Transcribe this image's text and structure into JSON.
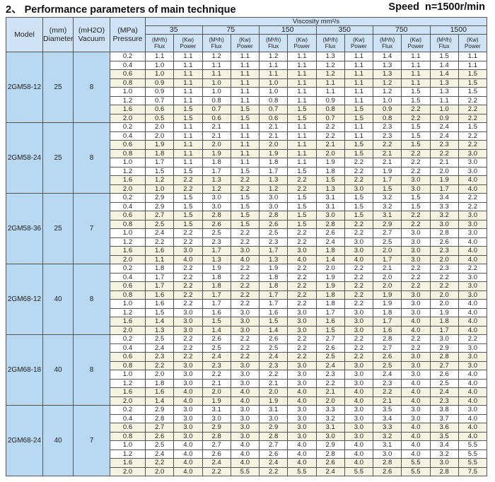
{
  "title": "2、 Performance parameters of main technique",
  "speed": "Speed   n=1500r/min",
  "headers": {
    "model": "Model",
    "diameter_unit": "(mm)",
    "diameter": "Diameter",
    "vacuum_unit": "(mH2O)",
    "vacuum": "Vacuum",
    "pressure_unit": "(MPa)",
    "pressure": "Pressure",
    "viscosity": "Viscosity mm²/s",
    "viscosities": [
      "35",
      "75",
      "150",
      "350",
      "750",
      "1500"
    ],
    "flux_unit": "(M³/h)",
    "flux": "Flux",
    "power_unit": "(Kw)",
    "power": "Power"
  },
  "colors": {
    "header_bg": "#cfe3f6",
    "left_bg": "#b9d8f2",
    "shade_bg": "#f5f3e1"
  },
  "pressures": [
    "0.2",
    "0.4",
    "0.6",
    "0.8",
    "1.0",
    "1.2",
    "1.6",
    "2.0"
  ],
  "models": [
    {
      "model": "2GM58-12",
      "diameter": "25",
      "vacuum": "8",
      "rows": [
        [
          "1.1",
          "1.1",
          "1.2",
          "1.1",
          "1.2",
          "1.1",
          "1.3",
          "1.1",
          "1.4",
          "1.1",
          "1.5",
          "1.1"
        ],
        [
          "1.0",
          "1.1",
          "1.1",
          "1.1",
          "1.1",
          "1.1",
          "1.2",
          "1.1",
          "1.3",
          "1.1",
          "1.4",
          "1.1"
        ],
        [
          "1.0",
          "1.1",
          "1.1",
          "1.1",
          "1.1",
          "1.1",
          "1.2",
          "1.1",
          "1.3",
          "1.1",
          "1.4",
          "1.5"
        ],
        [
          "0.9",
          "1.1",
          "1.0",
          "1.1",
          "1.0",
          "1.1",
          "1.1",
          "1.1",
          "1.2",
          "1.1",
          "1.3",
          "1.5"
        ],
        [
          "0.9",
          "1.1",
          "1.0",
          "1.1",
          "1.0",
          "1.1",
          "1.1",
          "1.1",
          "1.2",
          "1.5",
          "1.3",
          "1.5"
        ],
        [
          "0.7",
          "1.1",
          "0.8",
          "1.1",
          "0.8",
          "1.1",
          "0.9",
          "1.1",
          "1.0",
          "1.5",
          "1.1",
          "2.2"
        ],
        [
          "0.6",
          "1.5",
          "0.7",
          "1.5",
          "0.7",
          "1.5",
          "0.8",
          "1.5",
          "0.9",
          "2.2",
          "1.0",
          "2.2"
        ],
        [
          "0.5",
          "1.5",
          "0.6",
          "1.5",
          "0.6",
          "1.5",
          "0.7",
          "1.5",
          "0.8",
          "2.2",
          "0.9",
          "2.2"
        ]
      ]
    },
    {
      "model": "2GM58-24",
      "diameter": "25",
      "vacuum": "8",
      "rows": [
        [
          "2.0",
          "1.1",
          "2.1",
          "1.1",
          "2.1",
          "1.1",
          "2.2",
          "1.1",
          "2.3",
          "1.5",
          "2.4",
          "1.5"
        ],
        [
          "2.0",
          "1.1",
          "2.1",
          "1.1",
          "2.1",
          "1.1",
          "2.2",
          "1.1",
          "2.3",
          "1.5",
          "2.4",
          "2.2"
        ],
        [
          "1.9",
          "1.1",
          "2.0",
          "1.1",
          "2.0",
          "1.1",
          "2.1",
          "1.5",
          "2.2",
          "1.5",
          "2.3",
          "2.2"
        ],
        [
          "1.8",
          "1.1",
          "1.9",
          "1.1",
          "1.9",
          "1.1",
          "2.0",
          "1.5",
          "2.1",
          "2.2",
          "2.2",
          "3.0"
        ],
        [
          "1.7",
          "1.1",
          "1.8",
          "1.1",
          "1.8",
          "1.1",
          "1.9",
          "2.2",
          "2.1",
          "2.2",
          "2.1",
          "3.0"
        ],
        [
          "1.5",
          "1.5",
          "1.7",
          "1.5",
          "1.7",
          "1.5",
          "1.8",
          "2.2",
          "1.9",
          "2.2",
          "2.0",
          "3.0"
        ],
        [
          "1.2",
          "2.2",
          "1.3",
          "2.2",
          "1.3",
          "2.2",
          "1.5",
          "2.2",
          "1.7",
          "3.0",
          "1.9",
          "4.0"
        ],
        [
          "1.0",
          "2.2",
          "1.2",
          "2.2",
          "1.2",
          "2.2",
          "1.3",
          "3.0",
          "1.5",
          "3.0",
          "1.7",
          "4.0"
        ]
      ]
    },
    {
      "model": "2GM58-36",
      "diameter": "25",
      "vacuum": "7",
      "rows": [
        [
          "2.9",
          "1.5",
          "3.0",
          "1.5",
          "3.0",
          "1.5",
          "3.1",
          "1.5",
          "3.2",
          "1.5",
          "3.4",
          "2.2"
        ],
        [
          "2.9",
          "1.5",
          "3.0",
          "1.5",
          "3.0",
          "1.5",
          "3.1",
          "1.5",
          "3.2",
          "1.5",
          "3.3",
          "2.2"
        ],
        [
          "2.7",
          "1.5",
          "2.8",
          "1.5",
          "2.8",
          "1.5",
          "3.0",
          "1.5",
          "3.1",
          "2.2",
          "3.2",
          "3.0"
        ],
        [
          "2.5",
          "1.5",
          "2.6",
          "1.5",
          "2.6",
          "1.5",
          "2.8",
          "2.2",
          "2.9",
          "2.2",
          "3.0",
          "3.0"
        ],
        [
          "2.4",
          "2.2",
          "2.5",
          "2.2",
          "2.5",
          "2.2",
          "2.6",
          "2.2",
          "2.7",
          "3.0",
          "2.8",
          "3.0"
        ],
        [
          "2.2",
          "2.2",
          "2.3",
          "2.2",
          "2.3",
          "2.2",
          "2.4",
          "3.0",
          "2.5",
          "3.0",
          "2.6",
          "4.0"
        ],
        [
          "1.6",
          "3.0",
          "1.7",
          "3.0",
          "1.7",
          "3.0",
          "1.8",
          "3.0",
          "2.0",
          "3.0",
          "2.3",
          "4.0"
        ],
        [
          "1.1",
          "4.0",
          "1.3",
          "4.0",
          "1.3",
          "4.0",
          "1.4",
          "4.0",
          "1.7",
          "3.0",
          "2.0",
          "4.0"
        ]
      ]
    },
    {
      "model": "2GM68-12",
      "diameter": "40",
      "vacuum": "8",
      "rows": [
        [
          "1.8",
          "2.2",
          "1.9",
          "2.2",
          "1.9",
          "2.2",
          "2.0",
          "2.2",
          "2.1",
          "2.2",
          "2.3",
          "2.2"
        ],
        [
          "1.7",
          "2.2",
          "1.8",
          "2.2",
          "1.8",
          "2.2",
          "1.9",
          "2.2",
          "2.0",
          "2.2",
          "2.2",
          "3.0"
        ],
        [
          "1.7",
          "2.2",
          "1.8",
          "2.2",
          "1.8",
          "2.2",
          "1.9",
          "2.2",
          "2.0",
          "2.2",
          "2.2",
          "3.0"
        ],
        [
          "1.6",
          "2.2",
          "1.7",
          "2.2",
          "1.7",
          "2.2",
          "1.8",
          "2.2",
          "1.9",
          "3.0",
          "2.0",
          "3.0"
        ],
        [
          "1.6",
          "2.2",
          "1.7",
          "2.2",
          "1.7",
          "2.2",
          "1.8",
          "2.2",
          "1.9",
          "3.0",
          "2.0",
          "4.0"
        ],
        [
          "1.5",
          "3.0",
          "1.6",
          "3.0",
          "1.6",
          "3.0",
          "1.7",
          "3.0",
          "1.8",
          "3.0",
          "1.9",
          "4.0"
        ],
        [
          "1.4",
          "3.0",
          "1.5",
          "3.0",
          "1.5",
          "3.0",
          "1.6",
          "3.0",
          "1.7",
          "4.0",
          "1.8",
          "4.0"
        ],
        [
          "1.3",
          "3.0",
          "1.4",
          "3.0",
          "1.4",
          "3.0",
          "1.5",
          "3.0",
          "1.6",
          "4.0",
          "1.7",
          "4.0"
        ]
      ]
    },
    {
      "model": "2GM68-18",
      "diameter": "40",
      "vacuum": "8",
      "rows": [
        [
          "2.5",
          "2.2",
          "2.6",
          "2.2",
          "2.6",
          "2.2",
          "2.7",
          "2.2",
          "2.8",
          "2.2",
          "3.0",
          "2.2"
        ],
        [
          "2.4",
          "2.2",
          "2.5",
          "2.2",
          "2.5",
          "2.2",
          "2.6",
          "2.2",
          "2.7",
          "2.2",
          "2.9",
          "3.0"
        ],
        [
          "2.3",
          "2.2",
          "2.4",
          "2.2",
          "2.4",
          "2.2",
          "2.5",
          "2.2",
          "2.6",
          "3.0",
          "2.8",
          "3.0"
        ],
        [
          "2.2",
          "3.0",
          "2.3",
          "3.0",
          "2.3",
          "3.0",
          "2.4",
          "3.0",
          "2.5",
          "3.0",
          "2.7",
          "3.0"
        ],
        [
          "2.0",
          "3.0",
          "2.2",
          "3.0",
          "2.2",
          "3.0",
          "2.3",
          "3.0",
          "2.4",
          "3.0",
          "2.6",
          "4.0"
        ],
        [
          "1.8",
          "3.0",
          "2.1",
          "3.0",
          "2.1",
          "3.0",
          "2.2",
          "3.0",
          "2.3",
          "4.0",
          "2.5",
          "4.0"
        ],
        [
          "1.6",
          "4.0",
          "2.0",
          "4.0",
          "2.0",
          "4.0",
          "2.1",
          "4.0",
          "2.2",
          "4.0",
          "2.4",
          "4.0"
        ],
        [
          "1.4",
          "4.0",
          "1.9",
          "4.0",
          "1.9",
          "4.0",
          "2.0",
          "4.0",
          "2.1",
          "4.0",
          "2.3",
          "4.0"
        ]
      ]
    },
    {
      "model": "2GM68-24",
      "diameter": "40",
      "vacuum": "7",
      "rows": [
        [
          "2.9",
          "3.0",
          "3.1",
          "3.0",
          "3.1",
          "3.0",
          "3.3",
          "3.0",
          "3.5",
          "3.0",
          "3.8",
          "3.0"
        ],
        [
          "2.8",
          "3.0",
          "3.0",
          "3.0",
          "3.0",
          "3.0",
          "3.2",
          "3.0",
          "3.4",
          "3.0",
          "3.7",
          "4.0"
        ],
        [
          "2.7",
          "3.0",
          "2.9",
          "3.0",
          "2.9",
          "3.0",
          "3.1",
          "3.0",
          "3.3",
          "4.0",
          "3.6",
          "4.0"
        ],
        [
          "2.6",
          "3.0",
          "2.8",
          "3.0",
          "2.8",
          "3.0",
          "3.0",
          "3.0",
          "3.2",
          "4.0",
          "3.5",
          "4.0"
        ],
        [
          "2.5",
          "4.0",
          "2.7",
          "4.0",
          "2.7",
          "4.0",
          "2.9",
          "4.0",
          "3.1",
          "4.0",
          "3.4",
          "5.5"
        ],
        [
          "2.4",
          "4.0",
          "2.6",
          "4.0",
          "2.6",
          "4.0",
          "2.8",
          "4.0",
          "3.0",
          "4.0",
          "3.2",
          "5.5"
        ],
        [
          "2.2",
          "4.0",
          "2.4",
          "4.0",
          "2.4",
          "4.0",
          "2.6",
          "4.0",
          "2.8",
          "5.5",
          "3.0",
          "5.5"
        ],
        [
          "2.0",
          "4.0",
          "2.2",
          "5.5",
          "2.2",
          "5.5",
          "2.4",
          "5.5",
          "2.6",
          "5.5",
          "2.8",
          "7.5"
        ]
      ]
    }
  ]
}
